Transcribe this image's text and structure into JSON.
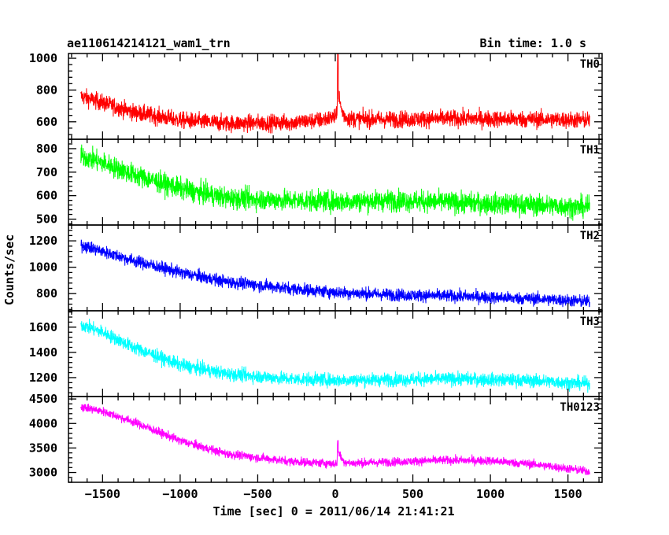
{
  "header": {
    "title": "ae110614214121_wam1_trn",
    "bin_time": "Bin time: 1.0 s"
  },
  "axes": {
    "xlabel": "Time [sec] 0 = 2011/06/14 21:41:21",
    "ylabel": "Counts/sec"
  },
  "chart_data": {
    "type": "line",
    "title": "ae110614214121_wam1_trn",
    "xlabel": "Time [sec] 0 = 2011/06/14 21:41:21",
    "ylabel": "Counts/sec",
    "xlim": [
      -1720,
      1720
    ],
    "xticks": [
      -1500,
      -1000,
      -500,
      0,
      500,
      1000,
      1500
    ],
    "x_range": [
      -1640,
      1640
    ],
    "grid": false,
    "panels": [
      {
        "name": "TH0",
        "color": "#ff0000",
        "ylim": [
          490,
          1030
        ],
        "yticks": [
          600,
          800,
          1000
        ],
        "trend": [
          [
            -1640,
            760
          ],
          [
            -1500,
            720
          ],
          [
            -1300,
            660
          ],
          [
            -1000,
            610
          ],
          [
            -700,
            590
          ],
          [
            -300,
            595
          ],
          [
            -100,
            610
          ],
          [
            0,
            630
          ],
          [
            50,
            620
          ],
          [
            300,
            615
          ],
          [
            800,
            620
          ],
          [
            1300,
            615
          ],
          [
            1640,
            610
          ]
        ],
        "noise": 45,
        "flare": {
          "t": 15,
          "peak": 1030,
          "width": 18,
          "extra": 180
        }
      },
      {
        "name": "TH1",
        "color": "#00ff00",
        "ylim": [
          475,
          840
        ],
        "yticks": [
          500,
          600,
          700,
          800
        ],
        "trend": [
          [
            -1640,
            770
          ],
          [
            -1500,
            740
          ],
          [
            -1300,
            690
          ],
          [
            -1000,
            630
          ],
          [
            -700,
            590
          ],
          [
            -300,
            580
          ],
          [
            0,
            575
          ],
          [
            400,
            580
          ],
          [
            800,
            570
          ],
          [
            1300,
            560
          ],
          [
            1640,
            550
          ]
        ],
        "noise": 38
      },
      {
        "name": "TH2",
        "color": "#0000ff",
        "ylim": [
          670,
          1320
        ],
        "yticks": [
          800,
          1000,
          1200
        ],
        "trend": [
          [
            -1640,
            1170
          ],
          [
            -1500,
            1120
          ],
          [
            -1300,
            1050
          ],
          [
            -1000,
            960
          ],
          [
            -700,
            890
          ],
          [
            -300,
            840
          ],
          [
            0,
            810
          ],
          [
            400,
            790
          ],
          [
            800,
            780
          ],
          [
            1300,
            760
          ],
          [
            1640,
            740
          ]
        ],
        "noise": 40
      },
      {
        "name": "TH3",
        "color": "#00ffff",
        "ylim": [
          1050,
          1730
        ],
        "yticks": [
          1200,
          1400,
          1600
        ],
        "trend": [
          [
            -1640,
            1620
          ],
          [
            -1500,
            1560
          ],
          [
            -1300,
            1440
          ],
          [
            -1000,
            1300
          ],
          [
            -700,
            1230
          ],
          [
            -300,
            1190
          ],
          [
            0,
            1180
          ],
          [
            400,
            1185
          ],
          [
            800,
            1190
          ],
          [
            1300,
            1175
          ],
          [
            1640,
            1150
          ]
        ],
        "noise": 45
      },
      {
        "name": "TH0123",
        "color": "#ff00ff",
        "ylim": [
          2800,
          4550
        ],
        "yticks": [
          3000,
          3500,
          4000,
          4500
        ],
        "trend": [
          [
            -1640,
            4340
          ],
          [
            -1500,
            4250
          ],
          [
            -1300,
            4030
          ],
          [
            -1000,
            3650
          ],
          [
            -700,
            3380
          ],
          [
            -300,
            3230
          ],
          [
            0,
            3180
          ],
          [
            200,
            3200
          ],
          [
            700,
            3250
          ],
          [
            1000,
            3240
          ],
          [
            1300,
            3160
          ],
          [
            1640,
            3020
          ]
        ],
        "noise": 75,
        "flare": {
          "t": 15,
          "peak": 3650,
          "width": 20,
          "extra": 300
        }
      }
    ]
  }
}
